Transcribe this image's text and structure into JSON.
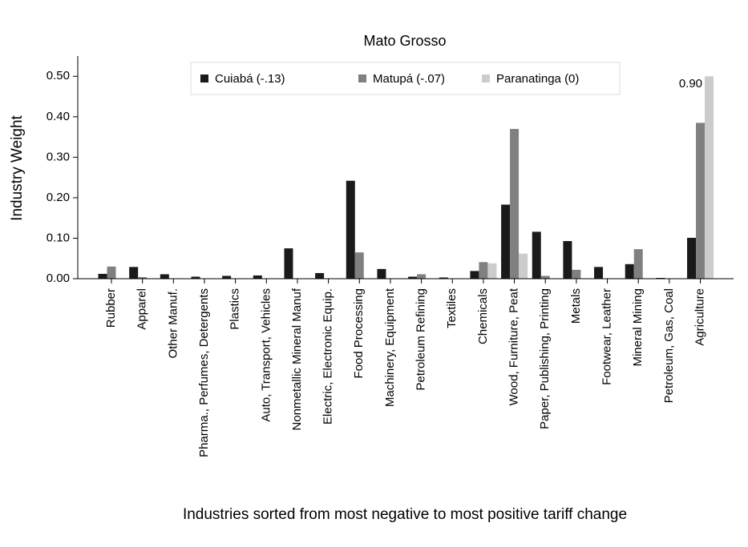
{
  "chart_data": {
    "type": "bar",
    "title": "Mato Grosso",
    "y_label": "Industry Weight",
    "x_label": "Industries sorted from most negative to most positive tariff change",
    "categories": [
      "Rubber",
      "Apparel",
      "Other Manuf.",
      "Pharma., Perfumes, Detergents",
      "Plastics",
      "Auto, Transport, Vehicles",
      "Nonmetallic Mineral Manuf",
      "Electric, Electronic Equip.",
      "Food Processing",
      "Machinery, Equipment",
      "Petroleum Refining",
      "Textiles",
      "Chemicals",
      "Wood, Furniture, Peat",
      "Paper, Publishing, Printing",
      "Metals",
      "Footwear, Leather",
      "Mineral Mining",
      "Petroleum, Gas, Coal",
      "Agriculture"
    ],
    "series": [
      {
        "name": "Cuiabá (-.13)",
        "color": "#1a1a1a",
        "values": [
          0.012,
          0.029,
          0.011,
          0.005,
          0.007,
          0.008,
          0.075,
          0.014,
          0.242,
          0.024,
          0.005,
          0.003,
          0.019,
          0.183,
          0.116,
          0.093,
          0.029,
          0.036,
          0.002,
          0.101
        ]
      },
      {
        "name": "Matupá (-.07)",
        "color": "#808080",
        "values": [
          0.03,
          0.004,
          0,
          0,
          0,
          0,
          0,
          0,
          0.065,
          0,
          0.011,
          0,
          0.041,
          0.37,
          0.007,
          0.022,
          0,
          0.073,
          0.001,
          0.385
        ]
      },
      {
        "name": "Paranatinga (0)",
        "color": "#cccccc",
        "values": [
          0,
          0,
          0,
          0,
          0,
          0,
          0,
          0,
          0,
          0,
          0,
          0,
          0.038,
          0.062,
          0,
          0,
          0,
          0,
          0,
          0.9
        ],
        "value_labels": [
          null,
          null,
          null,
          null,
          null,
          null,
          null,
          null,
          null,
          null,
          null,
          null,
          null,
          null,
          null,
          null,
          null,
          null,
          null,
          "0.90"
        ]
      }
    ],
    "ylim": [
      0,
      0.55
    ],
    "yticks": [
      {
        "value": 0,
        "label": "0.00"
      },
      {
        "value": 0.1,
        "label": "0.10"
      },
      {
        "value": 0.2,
        "label": "0.20"
      },
      {
        "value": 0.3,
        "label": "0.30"
      },
      {
        "value": 0.4,
        "label": "0.40"
      },
      {
        "value": 0.5,
        "label": "0.50"
      }
    ],
    "grid": false,
    "legend": "top"
  }
}
